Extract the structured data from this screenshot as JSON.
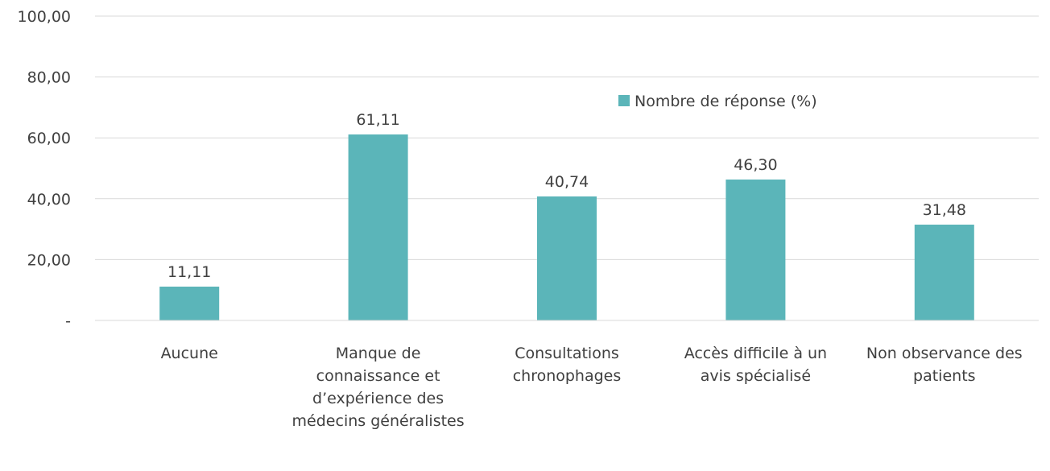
{
  "chart_data": {
    "type": "bar",
    "categories": [
      "Aucune",
      "Manque de connaissance et d’expérience des médecins généralistes",
      "Consultations chronophages",
      "Accès difficile à un avis spécialisé",
      "Non observance des patients"
    ],
    "series": [
      {
        "name": "Nombre de réponse (%)",
        "color": "#5bb5b9",
        "values": [
          11.11,
          61.11,
          40.74,
          46.3,
          31.48
        ],
        "value_labels": [
          "11,11",
          "61,11",
          "40,74",
          "46,30",
          "31,48"
        ]
      }
    ],
    "ylim": [
      0,
      100
    ],
    "yticks": [
      {
        "value": 0,
        "label": "-"
      },
      {
        "value": 20,
        "label": "20,00"
      },
      {
        "value": 40,
        "label": "40,00"
      },
      {
        "value": 60,
        "label": "60,00"
      },
      {
        "value": 80,
        "label": "80,00"
      },
      {
        "value": 100,
        "label": "100,00"
      }
    ],
    "grid": true,
    "legend": "top-right"
  }
}
